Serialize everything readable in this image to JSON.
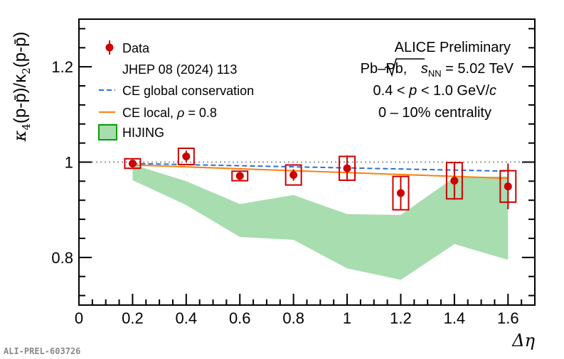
{
  "chart_data": {
    "type": "scatter",
    "x_axis": {
      "label": "Δη",
      "range": [
        0,
        1.7
      ],
      "ticks": [
        "0",
        "0.2",
        "0.4",
        "0.6",
        "0.8",
        "1",
        "1.2",
        "1.4",
        "1.6"
      ]
    },
    "y_axis": {
      "label_parts": [
        "κ",
        "4",
        "(p-p̄)/κ",
        "2",
        "(p-p̄)"
      ],
      "range": [
        0.7,
        1.3
      ],
      "ticks": [
        "0.8",
        "1",
        "1.2"
      ]
    },
    "reference_line": {
      "y": 1.0,
      "style": "dotted",
      "color": "#999999"
    },
    "series": [
      {
        "name": "Data",
        "color": "#cc0000",
        "points": [
          {
            "x": 0.2,
            "y": 0.997,
            "stat_err": 0.004,
            "sys_err": 0.01
          },
          {
            "x": 0.4,
            "y": 1.012,
            "stat_err": 0.012,
            "sys_err": 0.017
          },
          {
            "x": 0.6,
            "y": 0.971,
            "stat_err": 0.008,
            "sys_err": 0.01
          },
          {
            "x": 0.8,
            "y": 0.973,
            "stat_err": 0.012,
            "sys_err": 0.021
          },
          {
            "x": 1.0,
            "y": 0.987,
            "stat_err": 0.027,
            "sys_err": 0.025
          },
          {
            "x": 1.2,
            "y": 0.935,
            "stat_err": 0.035,
            "sys_err": 0.035
          },
          {
            "x": 1.4,
            "y": 0.961,
            "stat_err": 0.04,
            "sys_err": 0.038
          },
          {
            "x": 1.6,
            "y": 0.949,
            "stat_err": 0.048,
            "sys_err": 0.033
          }
        ]
      },
      {
        "name": "CE global conservation",
        "color": "#2b6fd6",
        "style": "dashed",
        "x": [
          0.2,
          1.6
        ],
        "y": [
          0.997,
          0.981
        ]
      },
      {
        "name": "CE local, ρ = 0.8",
        "color": "#ff7f0e",
        "style": "solid",
        "x": [
          0.2,
          1.6
        ],
        "y": [
          0.994,
          0.966
        ]
      },
      {
        "name": "HIJING",
        "color": "#a8ddb0",
        "style": "band",
        "x": [
          0.2,
          0.4,
          0.6,
          0.8,
          1.0,
          1.2,
          1.4,
          1.6
        ],
        "upper": [
          0.995,
          0.96,
          0.912,
          0.931,
          0.891,
          0.889,
          0.968,
          0.97
        ],
        "lower": [
          0.962,
          0.91,
          0.843,
          0.837,
          0.777,
          0.753,
          0.828,
          0.795
        ]
      }
    ],
    "legend": {
      "placement": "top-left",
      "entries": [
        {
          "label": "Data",
          "marker": "point"
        },
        {
          "label": "JHEP 08 (2024) 113",
          "marker": "none"
        },
        {
          "label": "CE global conservation",
          "marker": "dashed-line"
        },
        {
          "label": "CE local, ",
          "label_sym": "ρ",
          "label_tail": " = 0.8",
          "marker": "solid-line"
        },
        {
          "label": "HIJING",
          "marker": "box"
        }
      ]
    },
    "annotations": {
      "experiment": "ALICE Preliminary",
      "system": "Pb–Pb, ",
      "energy_sym": "s",
      "energy_sub": "NN",
      "energy_value": " = 5.02 TeV",
      "momentum_pre": "0.4 < ",
      "momentum_sym": "p",
      "momentum_mid": " < 1.0 GeV/",
      "momentum_unit": "c",
      "centrality": "0 – 10% centrality"
    },
    "figure_tag": "ALI-PREL-603726"
  }
}
